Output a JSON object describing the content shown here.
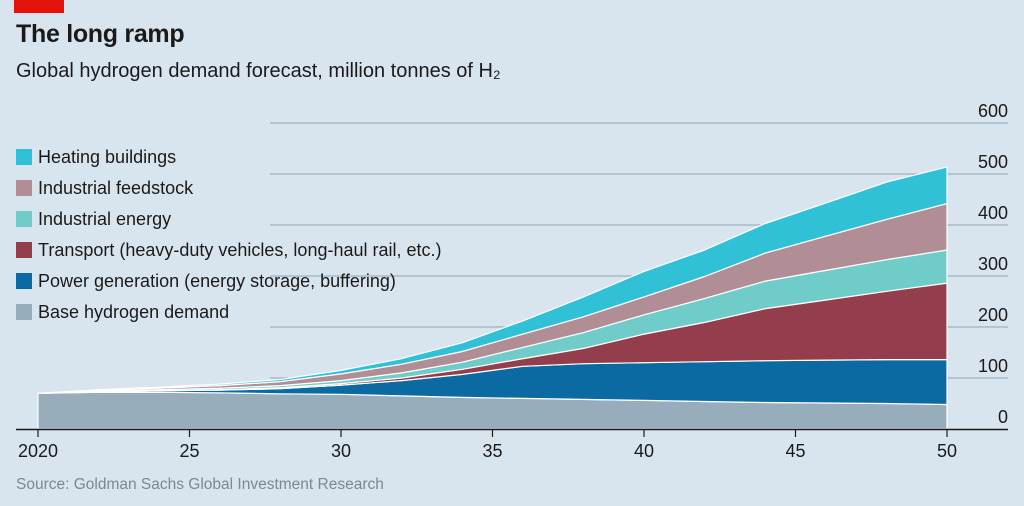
{
  "header": {
    "title": "The long ramp",
    "subtitle": "Global hydrogen demand forecast, million tonnes of H₂"
  },
  "footer": {
    "source": "Source: Goldman Sachs Global Investment Research"
  },
  "chart_data": {
    "type": "area",
    "stacked": true,
    "x": [
      2020,
      2022,
      2024,
      2026,
      2028,
      2030,
      2032,
      2034,
      2036,
      2038,
      2040,
      2042,
      2044,
      2046,
      2048,
      2050
    ],
    "xticks": [
      2020,
      2025,
      2030,
      2035,
      2040,
      2045,
      2050
    ],
    "xtick_labels": [
      "2020",
      "25",
      "30",
      "35",
      "40",
      "45",
      "50"
    ],
    "yticks": [
      0,
      100,
      200,
      300,
      400,
      500,
      600
    ],
    "ytick_labels": [
      "0",
      "100",
      "200",
      "300",
      "400",
      "500",
      "600"
    ],
    "ylim": [
      0,
      600
    ],
    "xlim": [
      2020,
      2050
    ],
    "grid": "horizontal",
    "legend_placement": "top-left",
    "series": [
      {
        "name": "Base hydrogen demand",
        "color": "#98adbb",
        "values": [
          70,
          72,
          72,
          71,
          69,
          68,
          65,
          62,
          60,
          58,
          56,
          54,
          52,
          51,
          50,
          48
        ]
      },
      {
        "name": "Power generation (energy storage, buffering)",
        "color": "#0a6aa1",
        "values": [
          0,
          1,
          3,
          5,
          10,
          18,
          30,
          45,
          63,
          70,
          74,
          78,
          82,
          84,
          86,
          88
        ]
      },
      {
        "name": "Transport (heavy-duty vehicles, long-haul rail, etc.)",
        "color": "#943d4c",
        "values": [
          0,
          0,
          0,
          1,
          2,
          3,
          5,
          10,
          15,
          30,
          56,
          77,
          102,
          118,
          134,
          150
        ]
      },
      {
        "name": "Industrial energy",
        "color": "#6fccc9",
        "values": [
          0,
          1,
          2,
          3,
          4,
          6,
          10,
          14,
          22,
          31,
          38,
          47,
          54,
          58,
          62,
          65
        ]
      },
      {
        "name": "Industrial feedstock",
        "color": "#b18e96",
        "values": [
          0,
          2,
          3,
          5,
          8,
          13,
          17,
          21,
          26,
          31,
          35,
          43,
          55,
          67,
          79,
          91
        ]
      },
      {
        "name": "Heating buildings",
        "color": "#31c1d6",
        "values": [
          0,
          1,
          2,
          3,
          4,
          7,
          11,
          17,
          26,
          39,
          50,
          52,
          58,
          65,
          73,
          72
        ]
      }
    ],
    "legend_order": [
      "Heating buildings",
      "Industrial feedstock",
      "Industrial energy",
      "Transport (heavy-duty vehicles, long-haul rail, etc.)",
      "Power generation (energy storage, buffering)",
      "Base hydrogen demand"
    ]
  }
}
